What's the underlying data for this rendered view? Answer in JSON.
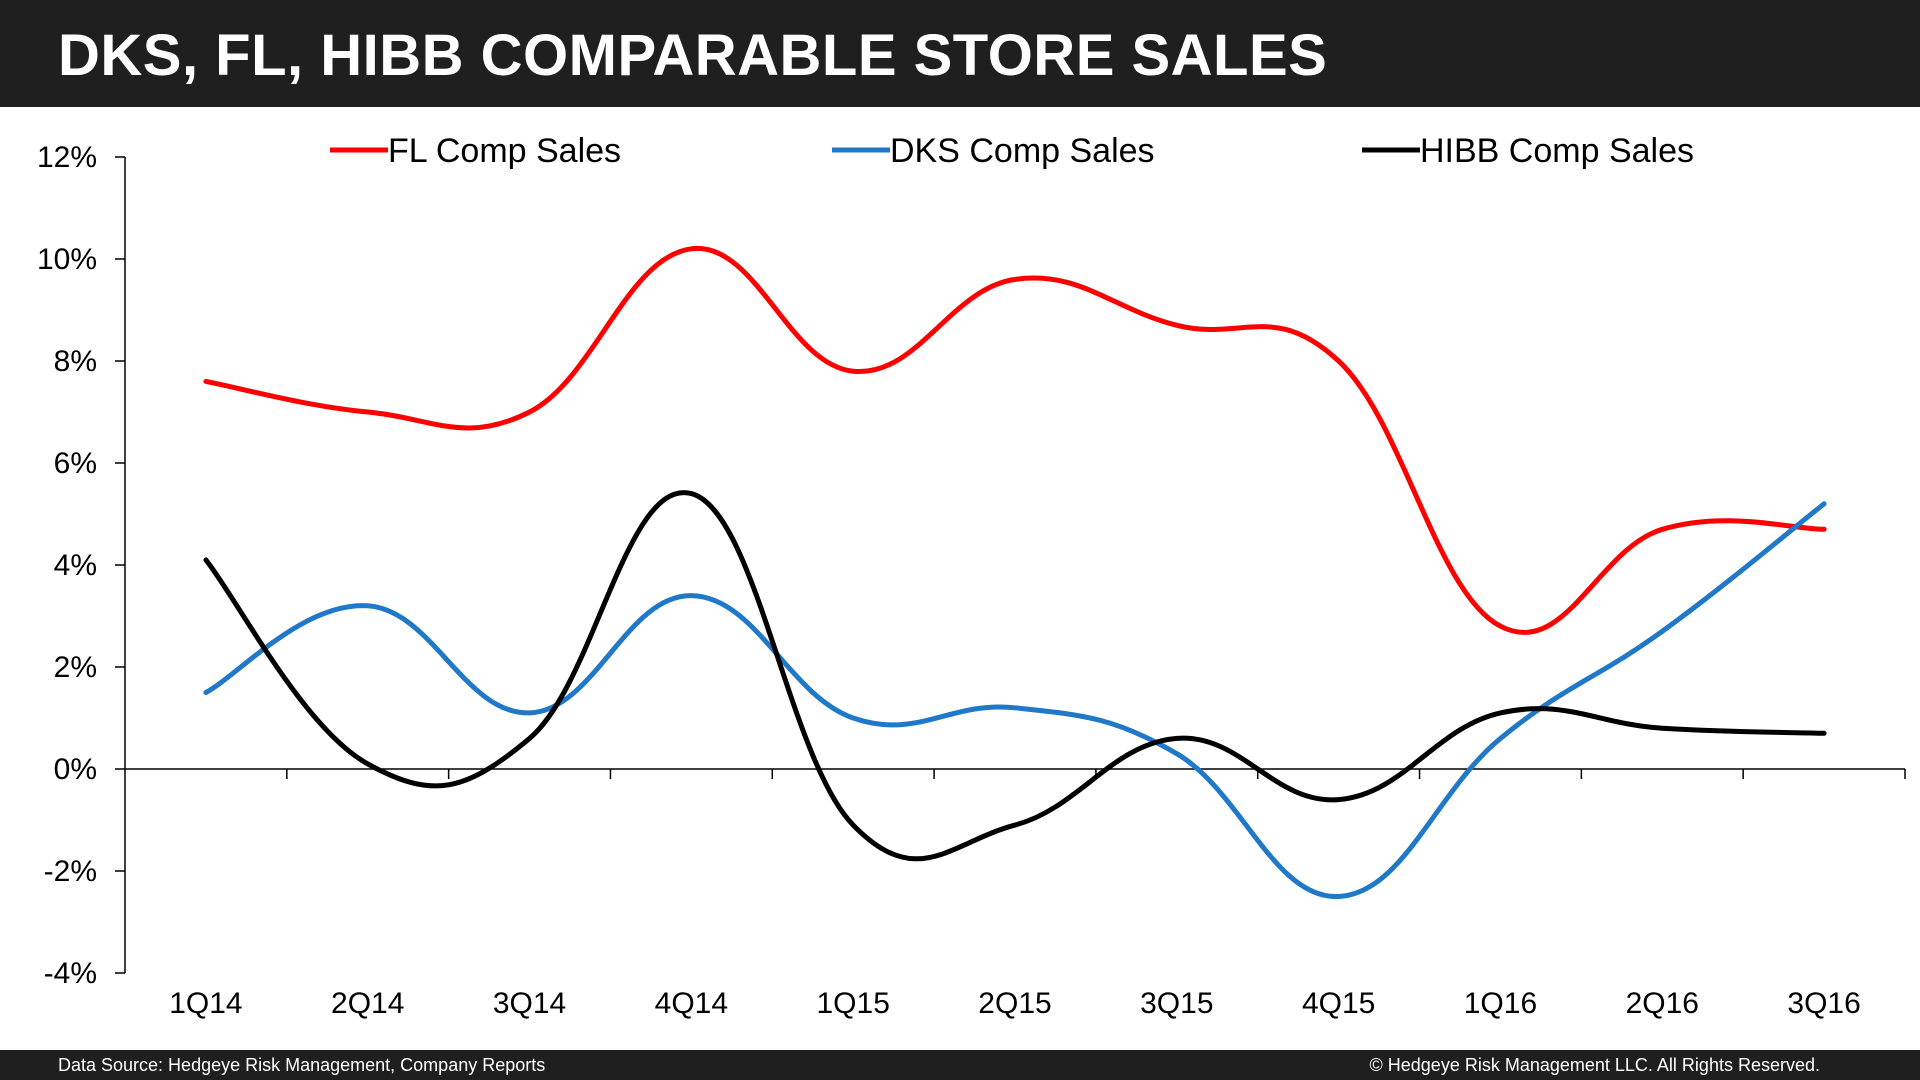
{
  "header": {
    "title": "DKS, FL, HIBB COMPARABLE STORE SALES"
  },
  "footer": {
    "source": "Data Source: Hedgeye Risk Management, Company Reports",
    "copyright": "© Hedgeye Risk Management LLC. All Rights Reserved."
  },
  "chart_data": {
    "type": "line",
    "categories": [
      "1Q14",
      "2Q14",
      "3Q14",
      "4Q14",
      "1Q15",
      "2Q15",
      "3Q15",
      "4Q15",
      "1Q16",
      "2Q16",
      "3Q16"
    ],
    "y_tick_labels": [
      "-4%",
      "-2%",
      "0%",
      "2%",
      "4%",
      "6%",
      "8%",
      "10%",
      "12%"
    ],
    "ylim": [
      -4,
      12
    ],
    "y_step": 2,
    "grid": false,
    "legend_position": "top",
    "series": [
      {
        "name": "FL Comp Sales",
        "color": "#ff0000",
        "values": [
          7.6,
          7.0,
          7.0,
          10.2,
          7.8,
          9.6,
          8.7,
          8.0,
          2.8,
          4.7,
          4.7
        ]
      },
      {
        "name": "DKS Comp Sales",
        "color": "#1f78c8",
        "values": [
          1.5,
          3.2,
          1.1,
          3.4,
          1.0,
          1.2,
          0.3,
          -2.5,
          0.6,
          2.7,
          5.2
        ]
      },
      {
        "name": "HIBB Comp Sales",
        "color": "#000000",
        "values": [
          4.1,
          0.1,
          0.6,
          5.4,
          -1.1,
          -1.1,
          0.6,
          -0.6,
          1.1,
          0.8,
          0.7
        ]
      }
    ]
  }
}
